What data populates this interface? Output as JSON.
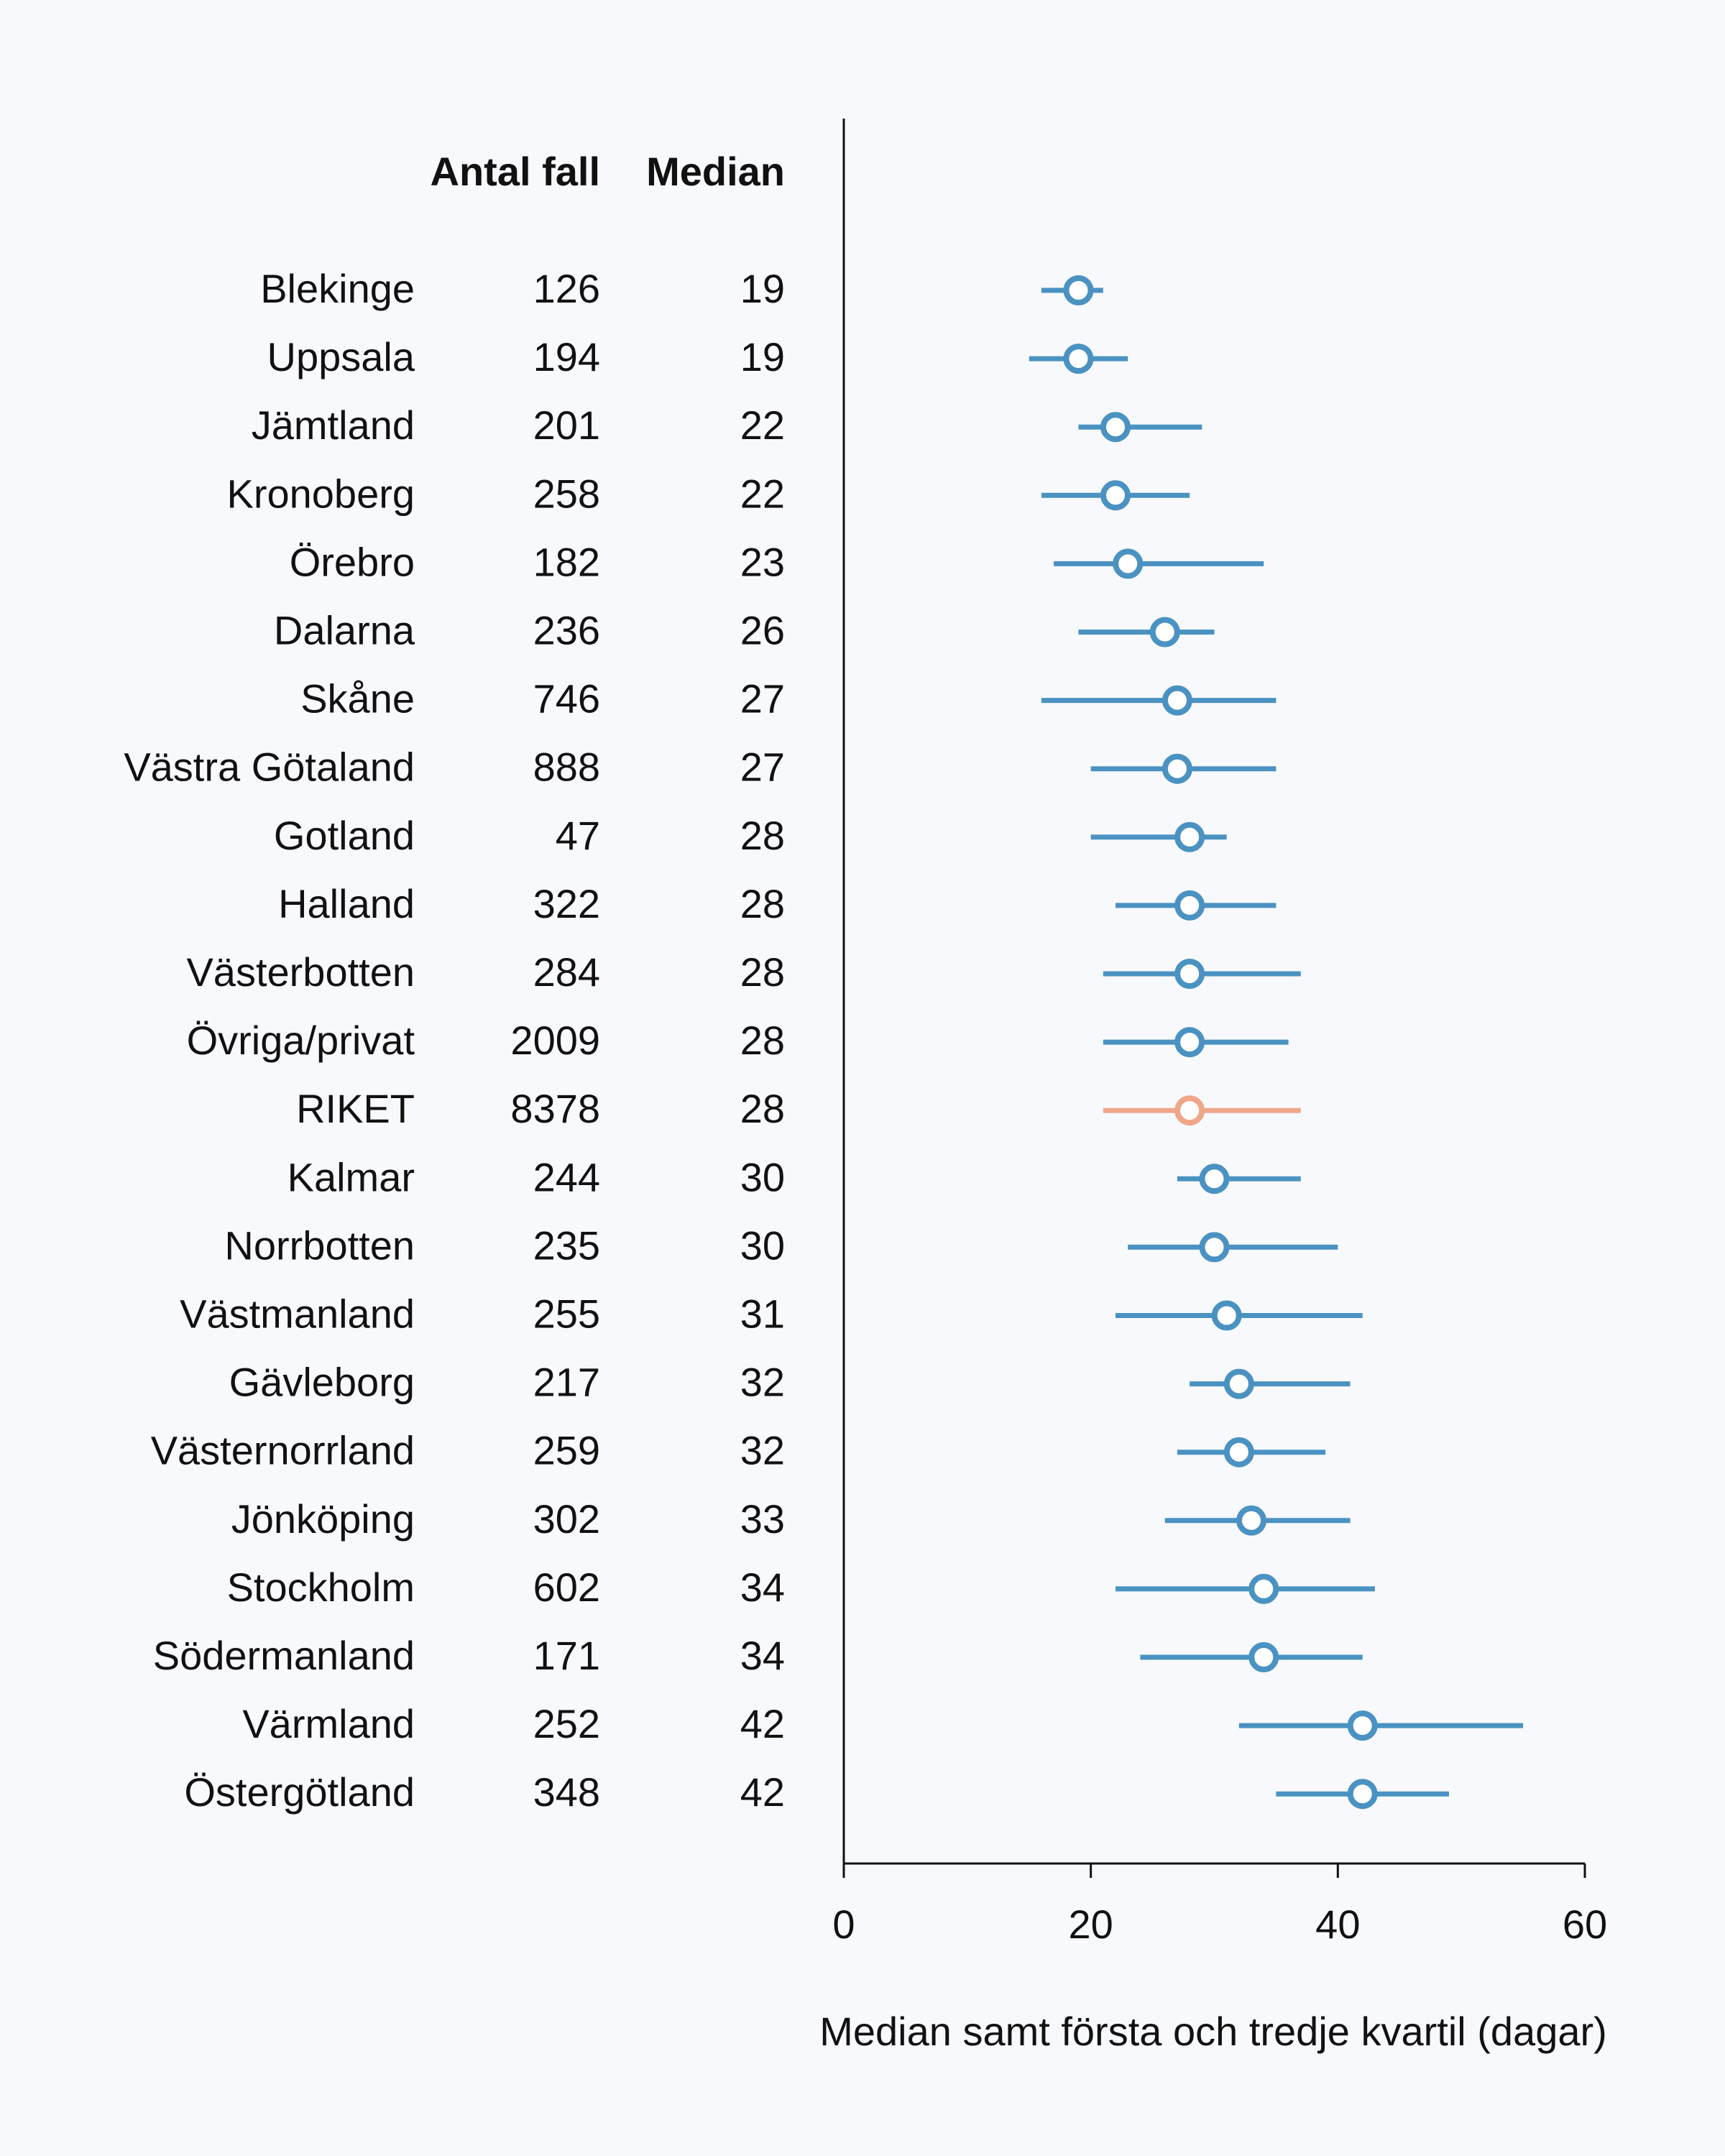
{
  "chart_data": {
    "type": "dot-range",
    "columns": {
      "count_header": "Antal fall",
      "median_header": "Median"
    },
    "xlabel": "Median samt första och tredje kvartil (dagar)",
    "xlim": [
      0,
      60
    ],
    "xticks": [
      0,
      20,
      40,
      60
    ],
    "colors": {
      "series": "#4a92c2",
      "highlight": "#f0a789"
    },
    "highlight_row": "RIKET",
    "rows": [
      {
        "name": "Blekinge",
        "count": "126",
        "median": 19,
        "q1": 16,
        "q3": 21
      },
      {
        "name": "Uppsala",
        "count": "194",
        "median": 19,
        "q1": 15,
        "q3": 23
      },
      {
        "name": "Jämtland",
        "count": "201",
        "median": 22,
        "q1": 19,
        "q3": 29
      },
      {
        "name": "Kronoberg",
        "count": "258",
        "median": 22,
        "q1": 16,
        "q3": 28
      },
      {
        "name": "Örebro",
        "count": "182",
        "median": 23,
        "q1": 17,
        "q3": 34
      },
      {
        "name": "Dalarna",
        "count": "236",
        "median": 26,
        "q1": 19,
        "q3": 30
      },
      {
        "name": "Skåne",
        "count": "746",
        "median": 27,
        "q1": 16,
        "q3": 35
      },
      {
        "name": "Västra Götaland",
        "count": "888",
        "median": 27,
        "q1": 20,
        "q3": 35
      },
      {
        "name": "Gotland",
        "count": "47",
        "median": 28,
        "q1": 20,
        "q3": 31
      },
      {
        "name": "Halland",
        "count": "322",
        "median": 28,
        "q1": 22,
        "q3": 35
      },
      {
        "name": "Västerbotten",
        "count": "284",
        "median": 28,
        "q1": 21,
        "q3": 37
      },
      {
        "name": "Övriga/privat",
        "count": "2009",
        "median": 28,
        "q1": 21,
        "q3": 36
      },
      {
        "name": "RIKET",
        "count": "8378",
        "median": 28,
        "q1": 21,
        "q3": 37
      },
      {
        "name": "Kalmar",
        "count": "244",
        "median": 30,
        "q1": 27,
        "q3": 37
      },
      {
        "name": "Norrbotten",
        "count": "235",
        "median": 30,
        "q1": 23,
        "q3": 40
      },
      {
        "name": "Västmanland",
        "count": "255",
        "median": 31,
        "q1": 22,
        "q3": 42
      },
      {
        "name": "Gävleborg",
        "count": "217",
        "median": 32,
        "q1": 28,
        "q3": 41
      },
      {
        "name": "Västernorrland",
        "count": "259",
        "median": 32,
        "q1": 27,
        "q3": 39
      },
      {
        "name": "Jönköping",
        "count": "302",
        "median": 33,
        "q1": 26,
        "q3": 41
      },
      {
        "name": "Stockholm",
        "count": "602",
        "median": 34,
        "q1": 22,
        "q3": 43
      },
      {
        "name": "Södermanland",
        "count": "171",
        "median": 34,
        "q1": 24,
        "q3": 42
      },
      {
        "name": "Värmland",
        "count": "252",
        "median": 42,
        "q1": 32,
        "q3": 55
      },
      {
        "name": "Östergötland",
        "count": "348",
        "median": 42,
        "q1": 35,
        "q3": 49
      }
    ]
  }
}
